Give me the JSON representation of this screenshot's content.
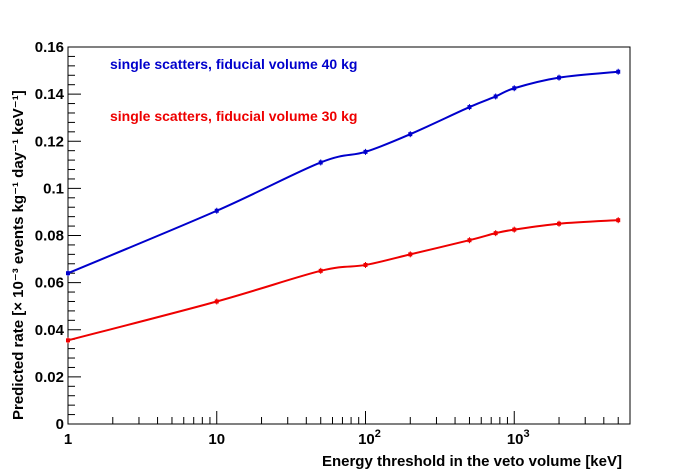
{
  "chart_data": {
    "type": "line",
    "title": "",
    "xlabel": "Energy threshold in the veto volume [keV]",
    "ylabel": "Predicted rate [× 10⁻³ events kg⁻¹ day⁻¹ keV⁻¹]",
    "xscale": "log",
    "xlim": [
      1,
      6000
    ],
    "ylim": [
      0,
      0.16
    ],
    "grid": false,
    "x_ticks": [
      {
        "value": 1,
        "label": "1"
      },
      {
        "value": 10,
        "label": "10"
      },
      {
        "value": 100,
        "label": "10",
        "exp": "2"
      },
      {
        "value": 1000,
        "label": "10",
        "exp": "3"
      }
    ],
    "y_ticks": [
      {
        "value": 0,
        "label": "0"
      },
      {
        "value": 0.02,
        "label": "0.02"
      },
      {
        "value": 0.04,
        "label": "0.04"
      },
      {
        "value": 0.06,
        "label": "0.06"
      },
      {
        "value": 0.08,
        "label": "0.08"
      },
      {
        "value": 0.1,
        "label": "0.1"
      },
      {
        "value": 0.12,
        "label": "0.12"
      },
      {
        "value": 0.14,
        "label": "0.14"
      },
      {
        "value": 0.16,
        "label": "0.16"
      }
    ],
    "series": [
      {
        "name": "single scatters, fiducial volume 40 kg",
        "color": "#0000cc",
        "points": [
          {
            "x": 1,
            "y": 0.064
          },
          {
            "x": 10,
            "y": 0.0905
          },
          {
            "x": 50,
            "y": 0.111
          },
          {
            "x": 100,
            "y": 0.1155
          },
          {
            "x": 200,
            "y": 0.123
          },
          {
            "x": 500,
            "y": 0.1345
          },
          {
            "x": 750,
            "y": 0.139
          },
          {
            "x": 1000,
            "y": 0.1425
          },
          {
            "x": 2000,
            "y": 0.147
          },
          {
            "x": 5000,
            "y": 0.1495
          }
        ]
      },
      {
        "name": "single scatters, fiducial volume 30 kg",
        "color": "#ee0000",
        "points": [
          {
            "x": 1,
            "y": 0.0355
          },
          {
            "x": 10,
            "y": 0.052
          },
          {
            "x": 50,
            "y": 0.065
          },
          {
            "x": 100,
            "y": 0.0675
          },
          {
            "x": 200,
            "y": 0.072
          },
          {
            "x": 500,
            "y": 0.078
          },
          {
            "x": 750,
            "y": 0.081
          },
          {
            "x": 1000,
            "y": 0.0825
          },
          {
            "x": 2000,
            "y": 0.085
          },
          {
            "x": 5000,
            "y": 0.0865
          }
        ]
      }
    ],
    "legend": [
      {
        "text": "single scatters, fiducial volume 40 kg",
        "color": "#0000cc"
      },
      {
        "text": "single scatters, fiducial volume 30 kg",
        "color": "#ee0000"
      }
    ]
  }
}
